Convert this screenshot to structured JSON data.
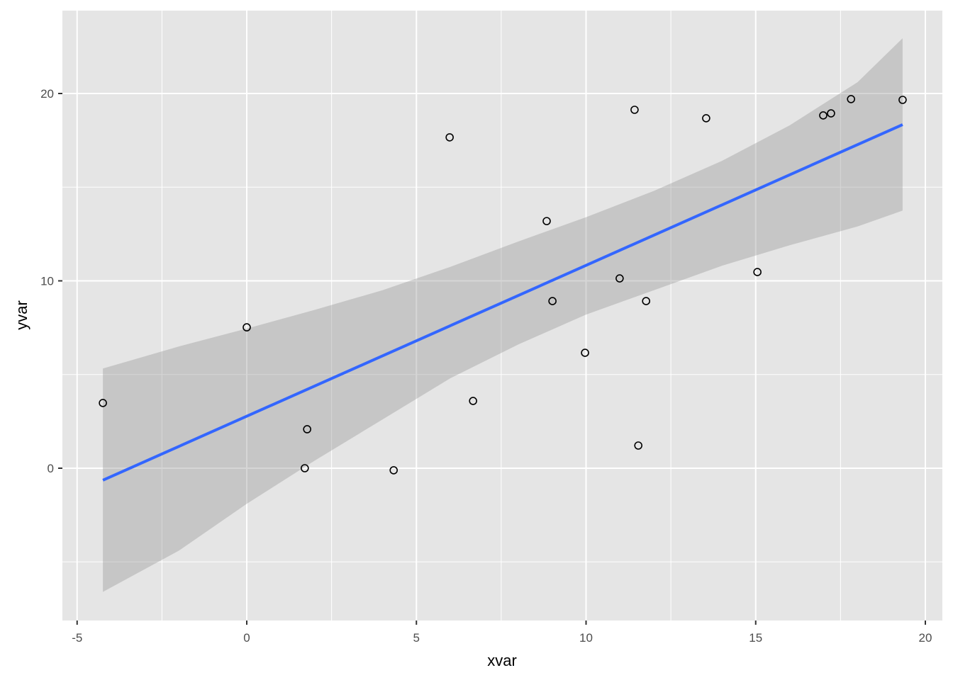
{
  "chart_data": {
    "type": "scatter",
    "title": "",
    "xlabel": "xvar",
    "ylabel": "yvar",
    "xlim": [
      -5.4,
      20.5
    ],
    "ylim": [
      -8.1,
      24.4
    ],
    "x_ticks": [
      -5,
      0,
      5,
      10,
      15,
      20
    ],
    "x_tick_labels": [
      "-5",
      "0",
      "5",
      "10",
      "15",
      "20"
    ],
    "y_ticks": [
      0,
      10,
      20
    ],
    "y_tick_labels": [
      "0",
      "10",
      "20"
    ],
    "x_minor_ticks": [
      -2.5,
      2.5,
      7.5,
      12.5,
      17.5
    ],
    "y_minor_ticks": [
      -5,
      5,
      15
    ],
    "grid": true,
    "legend": null,
    "colors": {
      "panel_background": "#e5e5e5",
      "grid": "#ffffff",
      "points_stroke": "#000000",
      "fit_line": "#3366ff",
      "confidence_band": "#999999"
    },
    "series": [
      {
        "name": "points",
        "type": "scatter",
        "marker": "open-circle",
        "points": [
          {
            "x": -4.24,
            "y": 3.48
          },
          {
            "x": 0.0,
            "y": 7.52
          },
          {
            "x": 1.78,
            "y": 2.08
          },
          {
            "x": 1.71,
            "y": 0.0
          },
          {
            "x": 4.33,
            "y": -0.11
          },
          {
            "x": 5.98,
            "y": 17.66
          },
          {
            "x": 6.67,
            "y": 3.59
          },
          {
            "x": 8.84,
            "y": 13.19
          },
          {
            "x": 9.01,
            "y": 8.92
          },
          {
            "x": 9.97,
            "y": 6.16
          },
          {
            "x": 10.99,
            "y": 10.13
          },
          {
            "x": 11.43,
            "y": 19.13
          },
          {
            "x": 11.54,
            "y": 1.21
          },
          {
            "x": 11.77,
            "y": 8.92
          },
          {
            "x": 13.54,
            "y": 18.68
          },
          {
            "x": 15.05,
            "y": 10.47
          },
          {
            "x": 16.99,
            "y": 18.83
          },
          {
            "x": 17.22,
            "y": 18.94
          },
          {
            "x": 17.81,
            "y": 19.7
          },
          {
            "x": 19.33,
            "y": 19.66
          }
        ]
      },
      {
        "name": "linear fit (lm)",
        "type": "line",
        "points": [
          {
            "x": -4.24,
            "y": -0.64
          },
          {
            "x": 19.33,
            "y": 18.34
          }
        ]
      },
      {
        "name": "95% confidence band",
        "type": "area",
        "x": [
          -4.24,
          -2,
          0,
          2,
          4,
          6,
          8,
          10,
          12,
          14,
          16,
          18,
          19.33
        ],
        "upper": [
          5.32,
          6.5,
          7.45,
          8.45,
          9.5,
          10.75,
          12.1,
          13.4,
          14.8,
          16.4,
          18.3,
          20.6,
          22.95
        ],
        "lower": [
          -6.6,
          -4.4,
          -1.9,
          0.4,
          2.6,
          4.8,
          6.6,
          8.2,
          9.5,
          10.8,
          11.9,
          12.9,
          13.75
        ]
      }
    ]
  }
}
